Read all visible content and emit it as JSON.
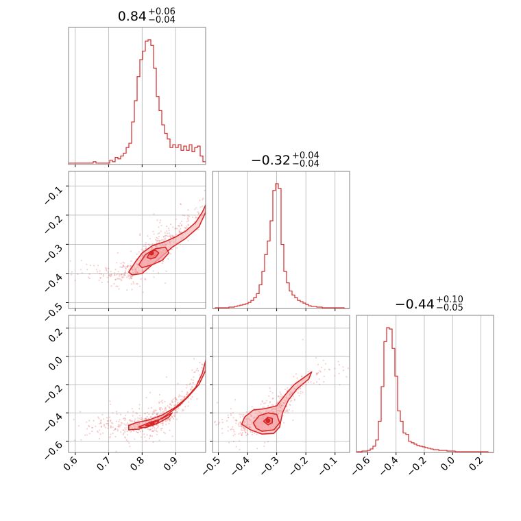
{
  "colors": {
    "accent": "#d62728",
    "fill": "#f4a6a8",
    "grid": "#b0b0b0",
    "frame": "#808080"
  },
  "chart_data": {
    "type": "corner",
    "grid": true,
    "parameters": [
      {
        "id": "p0",
        "range": [
          0.58,
          0.99
        ],
        "ticks": [
          0.6,
          0.7,
          0.8,
          0.9
        ],
        "tick_labels": [
          "0.6",
          "0.7",
          "0.8",
          "0.9"
        ],
        "title": {
          "main": "0.84",
          "plus": "+0.06",
          "minus": "−0.04"
        },
        "histogram": {
          "edges_start": 0.58,
          "bin_width": 0.0082,
          "counts": [
            1,
            1,
            1,
            1,
            1,
            1,
            1,
            1,
            1,
            2,
            1,
            1,
            1,
            1,
            1,
            3,
            2,
            5,
            4,
            6,
            8,
            12,
            15,
            30,
            45,
            62,
            74,
            80,
            87,
            88,
            84,
            68,
            48,
            38,
            28,
            22,
            18,
            12,
            14,
            12,
            14,
            10,
            13,
            10,
            14,
            9,
            12,
            13,
            6,
            2
          ]
        }
      },
      {
        "id": "p1",
        "range": [
          -0.52,
          -0.05
        ],
        "ticks": [
          -0.5,
          -0.4,
          -0.3,
          -0.2,
          -0.1
        ],
        "tick_labels": [
          "−0.5",
          "−0.4",
          "−0.3",
          "−0.2",
          "−0.1"
        ],
        "title": {
          "main": "−0.32",
          "plus": "+0.04",
          "minus": "−0.04"
        },
        "histogram": {
          "edges_start": -0.52,
          "bin_width": 0.0094,
          "counts": [
            0,
            1,
            1,
            1,
            1,
            1,
            2,
            2,
            3,
            4,
            5,
            6,
            7,
            9,
            12,
            16,
            22,
            35,
            55,
            80,
            100,
            130,
            175,
            185,
            178,
            95,
            55,
            38,
            26,
            20,
            16,
            12,
            10,
            8,
            6,
            4,
            3,
            3,
            2,
            2,
            1,
            1,
            1,
            1,
            1,
            1,
            1,
            1,
            0,
            0
          ]
        }
      },
      {
        "id": "p2",
        "range": [
          -0.68,
          0.29
        ],
        "ticks": [
          -0.6,
          -0.4,
          -0.2,
          0.0,
          0.2
        ],
        "tick_labels": [
          "−0.6",
          "−0.4",
          "−0.2",
          "0.0",
          "0.2"
        ],
        "title": {
          "main": "−0.44",
          "plus": "+0.10",
          "minus": "−0.05"
        },
        "histogram": {
          "edges_start": -0.68,
          "bin_width": 0.0194,
          "counts": [
            1,
            1,
            2,
            2,
            3,
            5,
            9,
            18,
            45,
            95,
            160,
            180,
            178,
            150,
            110,
            60,
            45,
            28,
            26,
            16,
            14,
            12,
            10,
            9,
            8,
            7,
            6,
            5,
            4,
            4,
            3,
            3,
            3,
            2,
            2,
            2,
            1,
            1,
            1,
            1,
            1,
            1,
            1,
            1,
            1,
            1,
            1,
            1,
            0,
            0
          ]
        }
      }
    ],
    "pairs": [
      {
        "x": "p0",
        "y": "p1",
        "trend": [
          [
            0.76,
            -0.4
          ],
          [
            0.8,
            -0.355
          ],
          [
            0.84,
            -0.32
          ],
          [
            0.88,
            -0.29
          ],
          [
            0.92,
            -0.25
          ],
          [
            0.96,
            -0.21
          ],
          [
            0.98,
            -0.17
          ],
          [
            0.99,
            -0.14
          ]
        ],
        "contour_outer": [
          [
            0.76,
            -0.395
          ],
          [
            0.78,
            -0.36
          ],
          [
            0.8,
            -0.33
          ],
          [
            0.83,
            -0.305
          ],
          [
            0.87,
            -0.29
          ],
          [
            0.9,
            -0.275
          ],
          [
            0.93,
            -0.255
          ],
          [
            0.96,
            -0.225
          ],
          [
            0.98,
            -0.19
          ],
          [
            0.99,
            -0.165
          ],
          [
            0.99,
            -0.19
          ],
          [
            0.97,
            -0.24
          ],
          [
            0.93,
            -0.28
          ],
          [
            0.89,
            -0.31
          ],
          [
            0.86,
            -0.34
          ],
          [
            0.83,
            -0.37
          ],
          [
            0.8,
            -0.4
          ],
          [
            0.77,
            -0.405
          ]
        ],
        "contour_mid": [
          [
            0.79,
            -0.37
          ],
          [
            0.81,
            -0.335
          ],
          [
            0.84,
            -0.315
          ],
          [
            0.87,
            -0.31
          ],
          [
            0.88,
            -0.33
          ],
          [
            0.86,
            -0.355
          ],
          [
            0.83,
            -0.37
          ],
          [
            0.8,
            -0.38
          ]
        ],
        "contour_inner": [
          [
            0.815,
            -0.345
          ],
          [
            0.825,
            -0.325
          ],
          [
            0.84,
            -0.32
          ],
          [
            0.85,
            -0.33
          ],
          [
            0.84,
            -0.345
          ],
          [
            0.825,
            -0.35
          ]
        ],
        "peak": [
          0.828,
          -0.33
        ]
      },
      {
        "x": "p0",
        "y": "p2",
        "trend": [
          [
            0.76,
            -0.5
          ],
          [
            0.8,
            -0.48
          ],
          [
            0.84,
            -0.45
          ],
          [
            0.88,
            -0.4
          ],
          [
            0.92,
            -0.32
          ],
          [
            0.95,
            -0.22
          ],
          [
            0.98,
            -0.1
          ],
          [
            0.99,
            -0.04
          ]
        ],
        "contour_outer": [
          [
            0.76,
            -0.49
          ],
          [
            0.78,
            -0.47
          ],
          [
            0.82,
            -0.45
          ],
          [
            0.86,
            -0.415
          ],
          [
            0.9,
            -0.36
          ],
          [
            0.93,
            -0.3
          ],
          [
            0.96,
            -0.22
          ],
          [
            0.98,
            -0.12
          ],
          [
            0.99,
            -0.03
          ],
          [
            0.99,
            -0.1
          ],
          [
            0.97,
            -0.2
          ],
          [
            0.94,
            -0.28
          ],
          [
            0.91,
            -0.35
          ],
          [
            0.87,
            -0.42
          ],
          [
            0.83,
            -0.48
          ],
          [
            0.79,
            -0.515
          ],
          [
            0.76,
            -0.52
          ]
        ],
        "contour_mid": [
          [
            0.79,
            -0.5
          ],
          [
            0.82,
            -0.47
          ],
          [
            0.86,
            -0.44
          ],
          [
            0.89,
            -0.4
          ],
          [
            0.88,
            -0.43
          ],
          [
            0.85,
            -0.47
          ],
          [
            0.81,
            -0.505
          ]
        ],
        "contour_inner": [
          [
            0.81,
            -0.49
          ],
          [
            0.83,
            -0.47
          ],
          [
            0.85,
            -0.455
          ],
          [
            0.845,
            -0.475
          ],
          [
            0.825,
            -0.49
          ]
        ],
        "peak": [
          0.83,
          -0.475
        ]
      },
      {
        "x": "p1",
        "y": "p2",
        "trend": [
          [
            -0.4,
            -0.48
          ],
          [
            -0.36,
            -0.45
          ],
          [
            -0.32,
            -0.42
          ],
          [
            -0.28,
            -0.35
          ],
          [
            -0.24,
            -0.25
          ],
          [
            -0.2,
            -0.17
          ],
          [
            -0.17,
            -0.09
          ]
        ],
        "contour_outer": [
          [
            -0.41,
            -0.43
          ],
          [
            -0.38,
            -0.38
          ],
          [
            -0.34,
            -0.37
          ],
          [
            -0.3,
            -0.35
          ],
          [
            -0.27,
            -0.27
          ],
          [
            -0.24,
            -0.2
          ],
          [
            -0.2,
            -0.14
          ],
          [
            -0.18,
            -0.11
          ],
          [
            -0.19,
            -0.16
          ],
          [
            -0.23,
            -0.23
          ],
          [
            -0.26,
            -0.31
          ],
          [
            -0.28,
            -0.4
          ],
          [
            -0.29,
            -0.5
          ],
          [
            -0.31,
            -0.545
          ],
          [
            -0.35,
            -0.55
          ],
          [
            -0.39,
            -0.52
          ],
          [
            -0.42,
            -0.48
          ]
        ],
        "contour_mid": [
          [
            -0.38,
            -0.47
          ],
          [
            -0.36,
            -0.42
          ],
          [
            -0.33,
            -0.4
          ],
          [
            -0.3,
            -0.41
          ],
          [
            -0.29,
            -0.47
          ],
          [
            -0.31,
            -0.52
          ],
          [
            -0.35,
            -0.53
          ],
          [
            -0.37,
            -0.51
          ]
        ],
        "contour_inner": [
          [
            -0.345,
            -0.46
          ],
          [
            -0.33,
            -0.43
          ],
          [
            -0.315,
            -0.44
          ],
          [
            -0.315,
            -0.47
          ],
          [
            -0.33,
            -0.485
          ]
        ],
        "peak": [
          -0.33,
          -0.455
        ]
      }
    ]
  }
}
